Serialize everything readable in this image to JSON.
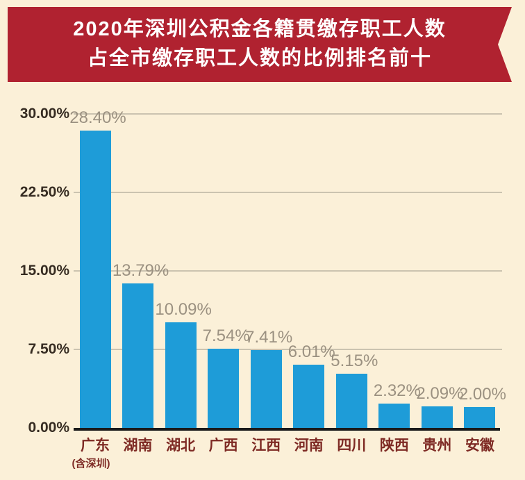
{
  "banner": {
    "line1": "2020年深圳公积金各籍贯缴存职工人数",
    "line2": "占全市缴存职工人数的比例排名前十",
    "bg_color": "#B02230",
    "text_color": "#FFFFFF"
  },
  "chart_data": {
    "type": "bar",
    "title": "2020年深圳公积金各籍贯缴存职工人数占全市缴存职工人数的比例排名前十",
    "categories": [
      "广东",
      "湖南",
      "湖北",
      "广西",
      "江西",
      "河南",
      "四川",
      "陕西",
      "贵州",
      "安徽"
    ],
    "first_category_note": "(含深圳)",
    "values": [
      28.4,
      13.79,
      10.09,
      7.54,
      7.41,
      6.01,
      5.15,
      2.32,
      2.09,
      2.0
    ],
    "value_labels": [
      "28.40%",
      "13.79%",
      "10.09%",
      "7.54%",
      "7.41%",
      "6.01%",
      "5.15%",
      "2.32%",
      "2.09%",
      "2.00%"
    ],
    "yticks": [
      {
        "value": 0,
        "label": "0.00%"
      },
      {
        "value": 7.5,
        "label": "7.50%"
      },
      {
        "value": 15,
        "label": "15.00%"
      },
      {
        "value": 22.5,
        "label": "22.50%"
      },
      {
        "value": 30,
        "label": "30.00%"
      }
    ],
    "ylim": [
      0,
      30
    ],
    "xlabel": "",
    "ylabel": "",
    "grid": true,
    "legend": false,
    "colors": {
      "bar": "#1E9CD8",
      "background": "#FBF0D8",
      "grid_line": "#CBC3B0",
      "axis_line": "#1A1A1A",
      "value_label": "#9B9181",
      "tick_label": "#362C22",
      "category_label": "#7E2A24"
    }
  }
}
